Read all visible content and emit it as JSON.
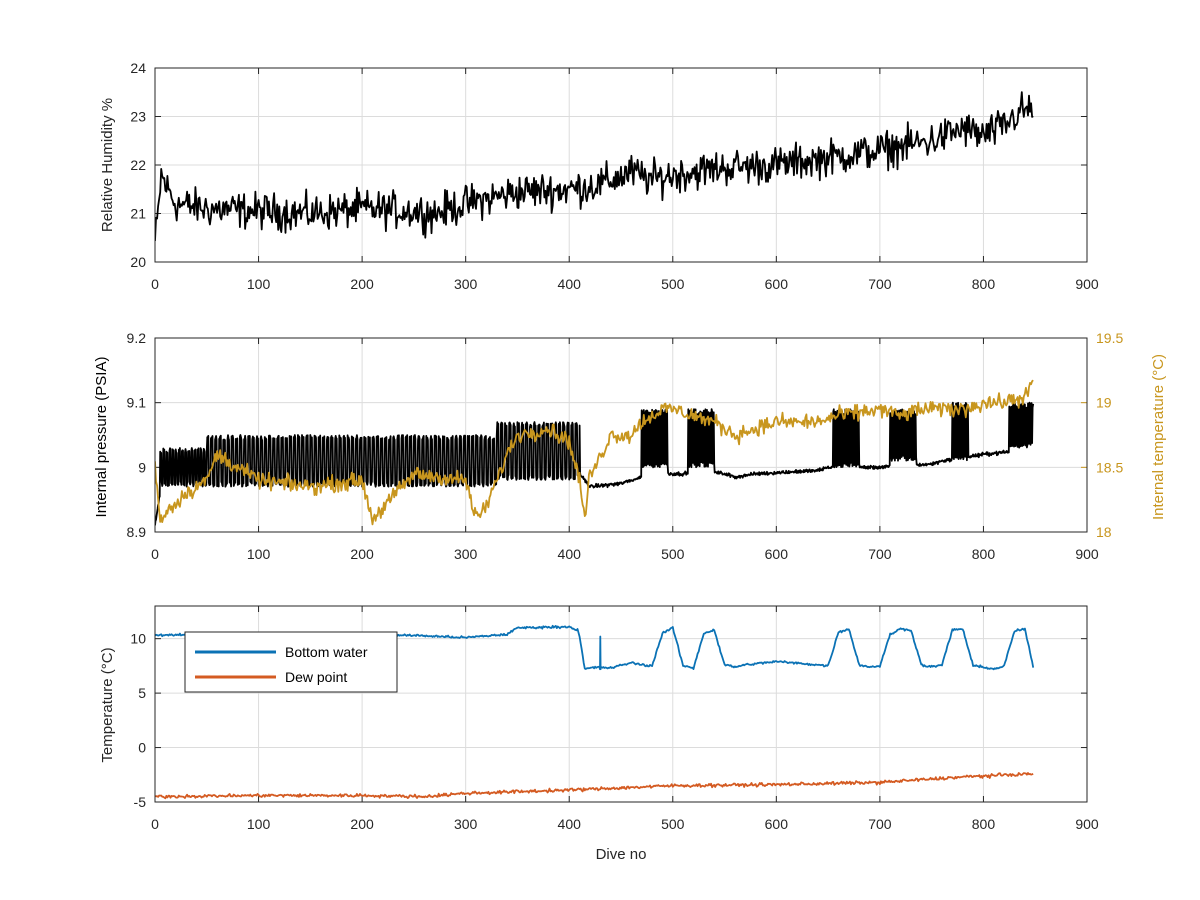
{
  "figure": {
    "background": "#ffffff"
  },
  "chart_data": [
    {
      "type": "line",
      "title": "",
      "xlabel": "",
      "ylabel": "Relative Humidity %",
      "xlim": [
        0,
        900
      ],
      "ylim": [
        20,
        24
      ],
      "xticks": [
        0,
        100,
        200,
        300,
        400,
        500,
        600,
        700,
        800,
        900
      ],
      "yticks": [
        20,
        21,
        22,
        23,
        24
      ],
      "ytick_labels": [
        "20",
        "21",
        "22",
        "23",
        "24"
      ],
      "grid": true,
      "series": [
        {
          "color": "#000000",
          "noise": 0.55,
          "x": [
            0,
            3,
            6,
            10,
            20,
            50,
            100,
            150,
            200,
            250,
            270,
            300,
            350,
            400,
            430,
            460,
            480,
            500,
            550,
            600,
            650,
            700,
            750,
            780,
            800,
            820,
            835,
            848
          ],
          "y": [
            20.4,
            21.0,
            21.8,
            21.6,
            21.2,
            21.1,
            21.05,
            21.0,
            21.1,
            21.05,
            21.0,
            21.2,
            21.45,
            21.5,
            21.6,
            21.85,
            21.7,
            21.8,
            21.95,
            22.0,
            22.15,
            22.3,
            22.5,
            22.75,
            22.6,
            22.8,
            23.1,
            23.15
          ]
        }
      ]
    },
    {
      "type": "line",
      "title": "",
      "xlabel": "",
      "ylabel": "Internal pressure (PSIA)",
      "y2label": "Internal temperature (°C)",
      "xlim": [
        0,
        900
      ],
      "ylim": [
        8.9,
        9.2
      ],
      "y2lim": [
        18,
        19.5
      ],
      "xticks": [
        0,
        100,
        200,
        300,
        400,
        500,
        600,
        700,
        800,
        900
      ],
      "yticks": [
        8.9,
        9.0,
        9.1,
        9.2
      ],
      "ytick_labels": [
        "8.9",
        "9",
        "9.1",
        "9.2"
      ],
      "y2ticks": [
        18,
        18.5,
        19,
        19.5
      ],
      "y2tick_labels": [
        "18",
        "18.5",
        "19",
        "19.5"
      ],
      "y2color": "#c8961e",
      "grid": true,
      "series": [
        {
          "name": "Internal pressure",
          "axis": "left",
          "color": "#000000",
          "base_x": [
            0,
            5,
            50,
            60,
            240,
            250,
            320,
            340,
            410,
            420,
            450,
            470,
            490,
            510,
            530,
            550,
            560,
            580,
            640,
            650,
            690,
            700,
            750,
            760,
            800,
            830,
            840,
            848
          ],
          "base_y": [
            8.91,
            8.96,
            8.97,
            8.98,
            8.98,
            8.975,
            8.96,
            8.99,
            8.99,
            8.97,
            8.975,
            8.985,
            8.99,
            8.99,
            8.995,
            8.99,
            8.985,
            8.99,
            8.995,
            9.0,
            9.0,
            9.0,
            9.005,
            9.01,
            9.02,
            9.025,
            9.03,
            9.03
          ],
          "bursts": [
            {
              "x0": 5,
              "x1": 50,
              "top": 9.03,
              "bottom": 8.97,
              "period": 3.0
            },
            {
              "x0": 50,
              "x1": 330,
              "top": 9.05,
              "bottom": 8.97,
              "period": 4.0
            },
            {
              "x0": 330,
              "x1": 410,
              "top": 9.07,
              "bottom": 8.98,
              "period": 4.0
            },
            {
              "x0": 470,
              "x1": 495,
              "top": 9.09,
              "bottom": 9.0,
              "period": 1.6
            },
            {
              "x0": 515,
              "x1": 540,
              "top": 9.09,
              "bottom": 9.0,
              "period": 1.6
            },
            {
              "x0": 655,
              "x1": 680,
              "top": 9.09,
              "bottom": 9.0,
              "period": 1.6
            },
            {
              "x0": 710,
              "x1": 735,
              "top": 9.09,
              "bottom": 9.01,
              "period": 1.6
            },
            {
              "x0": 770,
              "x1": 785,
              "top": 9.1,
              "bottom": 9.01,
              "period": 1.6
            },
            {
              "x0": 825,
              "x1": 848,
              "top": 9.1,
              "bottom": 9.03,
              "period": 1.6
            }
          ]
        },
        {
          "name": "Internal temperature",
          "axis": "right",
          "color": "#c8961e",
          "noise": 0.09,
          "x": [
            0,
            5,
            10,
            30,
            50,
            60,
            80,
            100,
            150,
            200,
            210,
            250,
            300,
            310,
            320,
            340,
            350,
            380,
            400,
            410,
            415,
            420,
            425,
            440,
            460,
            470,
            480,
            490,
            500,
            520,
            540,
            560,
            580,
            600,
            640,
            660,
            700,
            720,
            740,
            760,
            780,
            800,
            820,
            840,
            848
          ],
          "y": [
            18.5,
            18.1,
            18.15,
            18.3,
            18.4,
            18.6,
            18.5,
            18.4,
            18.35,
            18.4,
            18.1,
            18.45,
            18.4,
            18.1,
            18.2,
            18.6,
            18.75,
            18.8,
            18.7,
            18.4,
            18.1,
            18.45,
            18.5,
            18.75,
            18.75,
            18.85,
            18.9,
            18.95,
            18.95,
            18.9,
            18.85,
            18.75,
            18.8,
            18.85,
            18.85,
            18.9,
            18.95,
            18.9,
            18.95,
            18.95,
            18.95,
            19.0,
            19.0,
            19.05,
            19.15
          ]
        }
      ]
    },
    {
      "type": "line",
      "title": "",
      "xlabel": "Dive no",
      "ylabel": "Temperature (°C)",
      "xlim": [
        0,
        900
      ],
      "ylim": [
        -5,
        13
      ],
      "xticks": [
        0,
        100,
        200,
        300,
        400,
        500,
        600,
        700,
        800,
        900
      ],
      "yticks": [
        -5,
        0,
        5,
        10
      ],
      "ytick_labels": [
        "-5",
        "0",
        "5",
        "10"
      ],
      "grid": true,
      "legend": "top-left",
      "series": [
        {
          "name": "Bottom water",
          "color": "#0b72b5",
          "noise": 0.15,
          "x": [
            0,
            50,
            120,
            150,
            250,
            300,
            340,
            350,
            400,
            408,
            410,
            415,
            420,
            430,
            440,
            460,
            470,
            480,
            490,
            500,
            510,
            520,
            530,
            540,
            550,
            560,
            570,
            600,
            640,
            650,
            660,
            670,
            680,
            690,
            700,
            710,
            720,
            730,
            740,
            750,
            760,
            770,
            780,
            790,
            800,
            810,
            820,
            830,
            840,
            848
          ],
          "y": [
            10.3,
            10.4,
            10.4,
            10.4,
            10.3,
            10.1,
            10.4,
            11.0,
            11.1,
            10.8,
            10.2,
            7.2,
            7.3,
            7.4,
            7.3,
            7.8,
            7.6,
            7.5,
            10.5,
            11.0,
            7.5,
            7.3,
            10.5,
            10.8,
            7.6,
            7.4,
            7.6,
            7.9,
            7.6,
            7.5,
            10.6,
            10.9,
            7.6,
            7.4,
            7.5,
            10.4,
            10.9,
            10.8,
            7.6,
            7.4,
            7.6,
            10.8,
            10.9,
            7.5,
            7.4,
            7.2,
            7.5,
            10.7,
            10.9,
            7.4
          ],
          "spikes": [
            {
              "x": 430,
              "y": 10.2,
              "base": 7.2
            }
          ]
        },
        {
          "name": "Dew point",
          "color": "#d45b22",
          "noise": 0.22,
          "x": [
            0,
            100,
            200,
            260,
            300,
            400,
            450,
            500,
            600,
            700,
            780,
            848
          ],
          "y": [
            -4.5,
            -4.4,
            -4.4,
            -4.5,
            -4.2,
            -3.9,
            -3.7,
            -3.5,
            -3.4,
            -3.2,
            -2.7,
            -2.4
          ]
        }
      ]
    }
  ]
}
